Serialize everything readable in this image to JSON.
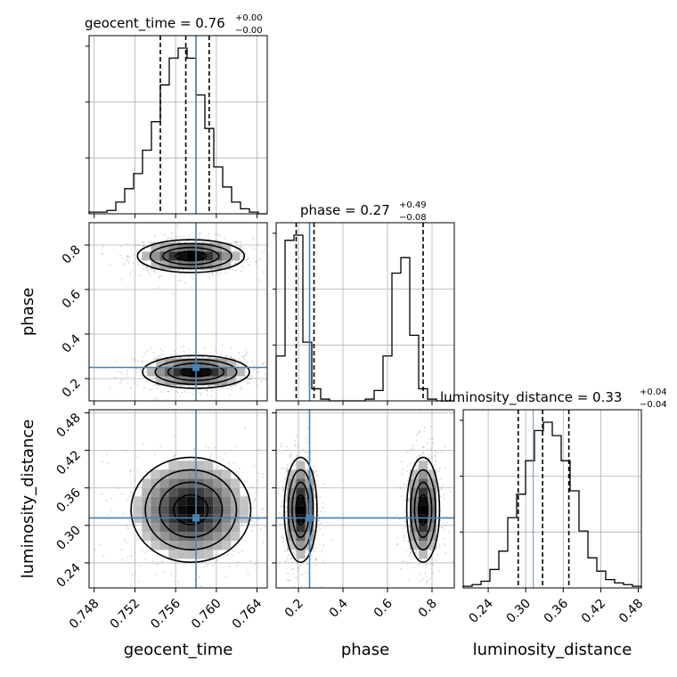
{
  "chart_data": {
    "type": "corner",
    "parameters": [
      "geocent_time",
      "phase",
      "luminosity_distance"
    ],
    "truths": {
      "geocent_time": 0.758,
      "phase": 0.25,
      "luminosity_distance": 0.312
    },
    "axes": {
      "geocent_time": {
        "range": [
          0.7475,
          0.765
        ],
        "ticks": [
          0.748,
          0.752,
          0.756,
          0.76,
          0.764
        ],
        "tick_labels": [
          "0.748",
          "0.752",
          "0.756",
          "0.760",
          "0.764"
        ]
      },
      "phase": {
        "range": [
          0.1,
          0.9
        ],
        "ticks": [
          0.2,
          0.4,
          0.6,
          0.8
        ],
        "tick_labels": [
          "0.2",
          "0.4",
          "0.6",
          "0.8"
        ]
      },
      "luminosity_distance": {
        "range": [
          0.2,
          0.485
        ],
        "ticks": [
          0.24,
          0.3,
          0.36,
          0.42,
          0.48
        ],
        "tick_labels": [
          "0.24",
          "0.30",
          "0.36",
          "0.42",
          "0.48"
        ]
      }
    },
    "titles": {
      "geocent_time": {
        "text": "geocent_time = 0.76",
        "sup": "+0.00",
        "sub": "−0.00"
      },
      "phase": {
        "text": "phase = 0.27",
        "sup": "+0.49",
        "sub": "−0.08"
      },
      "luminosity_distance": {
        "text": "luminosity_distance = 0.33",
        "sup": "+0.04",
        "sub": "−0.04"
      }
    },
    "axis_labels": {
      "x": [
        "geocent_time",
        "phase",
        "luminosity_distance"
      ],
      "y": [
        "phase",
        "luminosity_distance"
      ]
    },
    "histograms": {
      "geocent_time": {
        "edges_start": 0.7475,
        "bin_width": 0.000875,
        "counts": [
          0.01,
          0.01,
          0.02,
          0.07,
          0.15,
          0.24,
          0.38,
          0.55,
          0.77,
          0.93,
          0.99,
          0.93,
          0.71,
          0.51,
          0.28,
          0.16,
          0.07,
          0.03,
          0.01,
          0.0
        ],
        "quantiles": [
          0.7545,
          0.757,
          0.7593
        ]
      },
      "phase": {
        "edges_start": 0.1,
        "bin_width": 0.04,
        "counts": [
          0.26,
          0.93,
          0.96,
          0.34,
          0.07,
          0.01,
          0.0,
          0.0,
          0.0,
          0.0,
          0.01,
          0.06,
          0.26,
          0.74,
          0.83,
          0.38,
          0.07,
          0.01,
          0.0,
          0.0
        ],
        "quantiles": [
          0.19,
          0.27,
          0.76
        ]
      },
      "luminosity_distance": {
        "edges_start": 0.2,
        "bin_width": 0.01425,
        "counts": [
          0.01,
          0.02,
          0.04,
          0.11,
          0.22,
          0.42,
          0.56,
          0.76,
          0.94,
          0.99,
          0.91,
          0.76,
          0.58,
          0.34,
          0.18,
          0.1,
          0.05,
          0.03,
          0.02,
          0.01
        ],
        "quantiles": [
          0.288,
          0.327,
          0.369
        ]
      }
    },
    "modes_2d": {
      "phase_vs_geocent_time": [
        {
          "x": 0.7575,
          "y": 0.75,
          "sx": 0.0025,
          "sy": 0.035
        },
        {
          "x": 0.758,
          "y": 0.23,
          "sx": 0.0025,
          "sy": 0.035
        }
      ],
      "luminosity_distance_vs_geocent_time": [
        {
          "x": 0.7575,
          "y": 0.325,
          "sx": 0.0028,
          "sy": 0.04
        }
      ],
      "luminosity_distance_vs_phase": [
        {
          "x": 0.21,
          "y": 0.325,
          "sx": 0.035,
          "sy": 0.04
        },
        {
          "x": 0.76,
          "y": 0.325,
          "sx": 0.035,
          "sy": 0.04
        }
      ]
    }
  }
}
